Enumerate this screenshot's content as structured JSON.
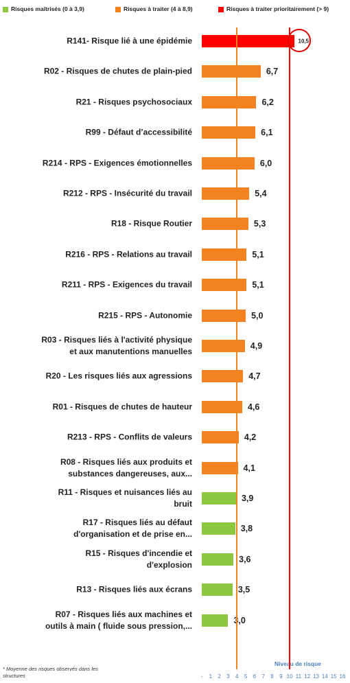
{
  "chart_data": {
    "type": "bar",
    "orientation": "horizontal",
    "legend": [
      {
        "name": "Risques maîtrisés (0 à 3,9)",
        "color": "#8dc63f"
      },
      {
        "name": "Risques à traiter (4 à 8,9)",
        "color": "#f58220"
      },
      {
        "name": "Risques à traiter prioritairement (> 9)",
        "color": "#ff0000"
      }
    ],
    "categories": [
      "R141- Risque lié à une épidémie",
      "R02 - Risques de chutes de plain-pied",
      "R21 - Risques psychosociaux",
      "R99 - Défaut d’accessibilité",
      "R214 - RPS - Exigences émotionnelles",
      "R212 - RPS - Insécurité du travail",
      "R18 - Risque Routier",
      "R216 - RPS - Relations au travail",
      "R211 - RPS - Exigences du travail",
      "R215 - RPS - Autonomie",
      "R03 - Risques liés à l'activité physique\net aux manutentions manuelles",
      "R20 - Les risques liés aux agressions",
      "R01 - Risques de chutes de hauteur",
      "R213 - RPS - Conflits de valeurs",
      "R08 - Risques liés aux produits et\nsubstances dangereuses, aux...",
      "R11 - Risques et nuisances liés au\nbruit",
      "R17 - Risques liés au défaut\nd'organisation et de prise en...",
      "R15 - Risques d'incendie et\nd'explosion",
      "R13 - Risques liés aux écrans",
      "R07 - Risques liés aux machines et\noutils à main ( fluide sous pression,..."
    ],
    "values": [
      10.5,
      6.7,
      6.2,
      6.1,
      6.0,
      5.4,
      5.3,
      5.1,
      5.1,
      5.0,
      4.9,
      4.7,
      4.6,
      4.2,
      4.1,
      3.9,
      3.8,
      3.6,
      3.5,
      3.0
    ],
    "value_labels": [
      "10,5",
      "6,7",
      "6,2",
      "6,1",
      "6,0",
      "5,4",
      "5,3",
      "5,1",
      "5,1",
      "5,0",
      "4,9",
      "4,7",
      "4,6",
      "4,2",
      "4,1",
      "3,9",
      "3,8",
      "3,6",
      "3,5",
      "3,0"
    ],
    "bar_colors": [
      "#ff0000",
      "#f58220",
      "#f58220",
      "#f58220",
      "#f58220",
      "#f58220",
      "#f58220",
      "#f58220",
      "#f58220",
      "#f58220",
      "#f58220",
      "#f58220",
      "#f58220",
      "#f58220",
      "#f58220",
      "#8dc63f",
      "#8dc63f",
      "#8dc63f",
      "#8dc63f",
      "#8dc63f"
    ],
    "xlim": [
      0,
      16
    ],
    "xticks": [
      {
        "value": 0,
        "label": "-"
      },
      1,
      2,
      3,
      4,
      5,
      6,
      7,
      8,
      9,
      10,
      11,
      12,
      13,
      14,
      15,
      16
    ],
    "reference_lines": [
      {
        "value": 4,
        "color": "#f58220"
      },
      {
        "value": 10,
        "color": "#ff0000"
      }
    ],
    "x_axis_label": "Niveau de risque",
    "footnote": "* Moyenne des risques observés dans les structures"
  }
}
